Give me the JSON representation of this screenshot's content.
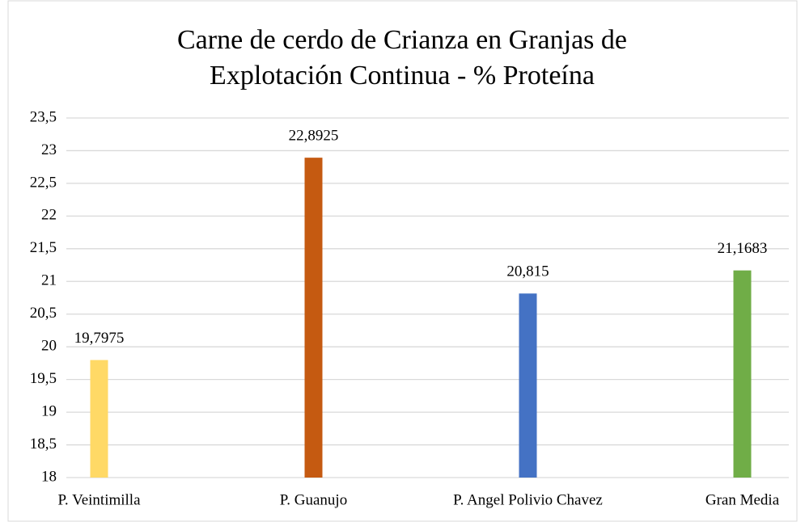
{
  "chart_data": {
    "type": "bar",
    "title": "Carne de cerdo de Crianza en Granjas de Explotación Continua  - % Proteína",
    "categories": [
      "P. Veintimilla",
      "P. Guanujo",
      "P. Angel Polivio Chavez",
      "Gran Media"
    ],
    "values": [
      19.7975,
      22.8925,
      20.815,
      21.1683
    ],
    "value_labels": [
      "19,7975",
      "22,8925",
      "20,815",
      "21,1683"
    ],
    "colors": [
      "#ffd966",
      "#c55a11",
      "#4472c4",
      "#70ad47"
    ],
    "ylim": [
      18,
      23.5
    ],
    "yticks": [
      18,
      {
        "value": 18.5,
        "label": "18,5"
      },
      19,
      {
        "value": 19.5,
        "label": "19,5"
      },
      20,
      {
        "value": 20.5,
        "label": "20,5"
      },
      21,
      {
        "value": 21.5,
        "label": "21,5"
      },
      22,
      {
        "value": 22.5,
        "label": "22,5"
      },
      23,
      {
        "value": 23.5,
        "label": "23,5"
      }
    ],
    "grid": true
  }
}
